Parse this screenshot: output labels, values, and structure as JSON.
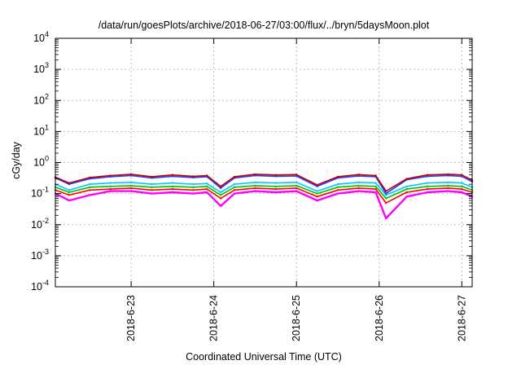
{
  "chart_data": {
    "type": "line",
    "title": "/data/run/goesPlots/archive/2018-06-27/03:00/flux/../bryn/5daysMoon.plot",
    "xlabel": "Coordinated Universal Time (UTC)",
    "ylabel": "cGy/day",
    "yscale": "log",
    "ylim": [
      0.0001,
      10000
    ],
    "xlim": [
      "2018-06-22T02:00",
      "2018-06-27T03:00"
    ],
    "grid": true,
    "legend": "none",
    "y_ticks": [
      {
        "base": "10",
        "exp": "-4",
        "value": 0.0001
      },
      {
        "base": "10",
        "exp": "-3",
        "value": 0.001
      },
      {
        "base": "10",
        "exp": "-2",
        "value": 0.01
      },
      {
        "base": "10",
        "exp": "-1",
        "value": 0.1
      },
      {
        "base": "10",
        "exp": "0",
        "value": 1
      },
      {
        "base": "10",
        "exp": "1",
        "value": 10
      },
      {
        "base": "10",
        "exp": "2",
        "value": 100
      },
      {
        "base": "10",
        "exp": "3",
        "value": 1000
      },
      {
        "base": "10",
        "exp": "4",
        "value": 10000
      }
    ],
    "x_ticks": [
      {
        "label": "2018-6-23",
        "t": "2018-06-23T00:00"
      },
      {
        "label": "2018-6-24",
        "t": "2018-06-24T00:00"
      },
      {
        "label": "2018-6-25",
        "t": "2018-06-25T00:00"
      },
      {
        "label": "2018-6-26",
        "t": "2018-06-26T00:00"
      },
      {
        "label": "2018-6-27",
        "t": "2018-06-27T00:00"
      }
    ],
    "series": [
      {
        "color": "#ff00ff",
        "x": [
          "2018-06-22T02:00",
          "2018-06-22T06:00",
          "2018-06-22T12:00",
          "2018-06-22T18:00",
          "2018-06-23T00:00",
          "2018-06-23T06:00",
          "2018-06-23T12:00",
          "2018-06-23T18:00",
          "2018-06-23T22:00",
          "2018-06-24T02:00",
          "2018-06-24T06:00",
          "2018-06-24T12:00",
          "2018-06-24T18:00",
          "2018-06-25T00:00",
          "2018-06-25T06:00",
          "2018-06-25T12:00",
          "2018-06-25T18:00",
          "2018-06-25T23:00",
          "2018-06-26T02:00",
          "2018-06-26T08:00",
          "2018-06-26T14:00",
          "2018-06-26T20:00",
          "2018-06-27T00:00",
          "2018-06-27T03:00"
        ],
        "values": [
          0.1,
          0.06,
          0.09,
          0.12,
          0.12,
          0.1,
          0.11,
          0.1,
          0.11,
          0.04,
          0.1,
          0.12,
          0.11,
          0.12,
          0.06,
          0.1,
          0.12,
          0.11,
          0.016,
          0.08,
          0.11,
          0.12,
          0.11,
          0.08
        ]
      },
      {
        "color": "#ff0000",
        "x": [
          "2018-06-22T02:00",
          "2018-06-22T06:00",
          "2018-06-22T12:00",
          "2018-06-22T18:00",
          "2018-06-23T00:00",
          "2018-06-23T06:00",
          "2018-06-23T12:00",
          "2018-06-23T18:00",
          "2018-06-23T22:00",
          "2018-06-24T02:00",
          "2018-06-24T06:00",
          "2018-06-24T12:00",
          "2018-06-24T18:00",
          "2018-06-25T00:00",
          "2018-06-25T06:00",
          "2018-06-25T12:00",
          "2018-06-25T18:00",
          "2018-06-25T23:00",
          "2018-06-26T02:00",
          "2018-06-26T08:00",
          "2018-06-26T14:00",
          "2018-06-26T20:00",
          "2018-06-27T00:00",
          "2018-06-27T03:00"
        ],
        "values": [
          0.13,
          0.09,
          0.13,
          0.14,
          0.15,
          0.13,
          0.14,
          0.13,
          0.14,
          0.07,
          0.13,
          0.15,
          0.14,
          0.15,
          0.08,
          0.13,
          0.15,
          0.14,
          0.05,
          0.11,
          0.14,
          0.15,
          0.14,
          0.11
        ]
      },
      {
        "color": "#00c000",
        "x": [
          "2018-06-22T02:00",
          "2018-06-22T06:00",
          "2018-06-22T12:00",
          "2018-06-22T18:00",
          "2018-06-23T00:00",
          "2018-06-23T06:00",
          "2018-06-23T12:00",
          "2018-06-23T18:00",
          "2018-06-23T22:00",
          "2018-06-24T02:00",
          "2018-06-24T06:00",
          "2018-06-24T12:00",
          "2018-06-24T18:00",
          "2018-06-25T00:00",
          "2018-06-25T06:00",
          "2018-06-25T12:00",
          "2018-06-25T18:00",
          "2018-06-25T23:00",
          "2018-06-26T02:00",
          "2018-06-26T08:00",
          "2018-06-26T14:00",
          "2018-06-26T20:00",
          "2018-06-27T00:00",
          "2018-06-27T03:00"
        ],
        "values": [
          0.16,
          0.11,
          0.16,
          0.17,
          0.18,
          0.16,
          0.17,
          0.16,
          0.17,
          0.09,
          0.16,
          0.18,
          0.17,
          0.18,
          0.1,
          0.16,
          0.18,
          0.17,
          0.07,
          0.14,
          0.17,
          0.18,
          0.17,
          0.13
        ]
      },
      {
        "color": "#00c8ff",
        "x": [
          "2018-06-22T02:00",
          "2018-06-22T06:00",
          "2018-06-22T12:00",
          "2018-06-22T18:00",
          "2018-06-23T00:00",
          "2018-06-23T06:00",
          "2018-06-23T12:00",
          "2018-06-23T18:00",
          "2018-06-23T22:00",
          "2018-06-24T02:00",
          "2018-06-24T06:00",
          "2018-06-24T12:00",
          "2018-06-24T18:00",
          "2018-06-25T00:00",
          "2018-06-25T06:00",
          "2018-06-25T12:00",
          "2018-06-25T18:00",
          "2018-06-25T23:00",
          "2018-06-26T02:00",
          "2018-06-26T08:00",
          "2018-06-26T14:00",
          "2018-06-26T20:00",
          "2018-06-27T00:00",
          "2018-06-27T03:00"
        ],
        "values": [
          0.2,
          0.13,
          0.2,
          0.22,
          0.23,
          0.2,
          0.22,
          0.2,
          0.21,
          0.11,
          0.2,
          0.23,
          0.22,
          0.23,
          0.12,
          0.2,
          0.23,
          0.22,
          0.09,
          0.17,
          0.22,
          0.23,
          0.22,
          0.16
        ]
      },
      {
        "color": "#2040ff",
        "x": [
          "2018-06-22T02:00",
          "2018-06-22T06:00",
          "2018-06-22T12:00",
          "2018-06-22T18:00",
          "2018-06-23T00:00",
          "2018-06-23T06:00",
          "2018-06-23T12:00",
          "2018-06-23T18:00",
          "2018-06-23T22:00",
          "2018-06-24T02:00",
          "2018-06-24T06:00",
          "2018-06-24T12:00",
          "2018-06-24T18:00",
          "2018-06-25T00:00",
          "2018-06-25T06:00",
          "2018-06-25T12:00",
          "2018-06-25T18:00",
          "2018-06-25T23:00",
          "2018-06-26T02:00",
          "2018-06-26T08:00",
          "2018-06-26T14:00",
          "2018-06-26T20:00",
          "2018-06-27T00:00",
          "2018-06-27T03:00"
        ],
        "values": [
          0.32,
          0.2,
          0.3,
          0.35,
          0.38,
          0.32,
          0.36,
          0.33,
          0.35,
          0.15,
          0.32,
          0.38,
          0.36,
          0.37,
          0.17,
          0.32,
          0.37,
          0.35,
          0.1,
          0.28,
          0.36,
          0.38,
          0.36,
          0.24
        ]
      },
      {
        "color": "#c00000",
        "x": [
          "2018-06-22T02:00",
          "2018-06-22T06:00",
          "2018-06-22T12:00",
          "2018-06-22T18:00",
          "2018-06-23T00:00",
          "2018-06-23T06:00",
          "2018-06-23T12:00",
          "2018-06-23T18:00",
          "2018-06-23T22:00",
          "2018-06-24T02:00",
          "2018-06-24T06:00",
          "2018-06-24T12:00",
          "2018-06-24T18:00",
          "2018-06-25T00:00",
          "2018-06-25T06:00",
          "2018-06-25T12:00",
          "2018-06-25T18:00",
          "2018-06-25T23:00",
          "2018-06-26T02:00",
          "2018-06-26T08:00",
          "2018-06-26T14:00",
          "2018-06-26T20:00",
          "2018-06-27T00:00",
          "2018-06-27T03:00"
        ],
        "values": [
          0.34,
          0.22,
          0.33,
          0.38,
          0.42,
          0.35,
          0.4,
          0.36,
          0.38,
          0.17,
          0.35,
          0.42,
          0.4,
          0.41,
          0.19,
          0.35,
          0.41,
          0.38,
          0.12,
          0.3,
          0.4,
          0.42,
          0.4,
          0.27
        ]
      }
    ]
  }
}
